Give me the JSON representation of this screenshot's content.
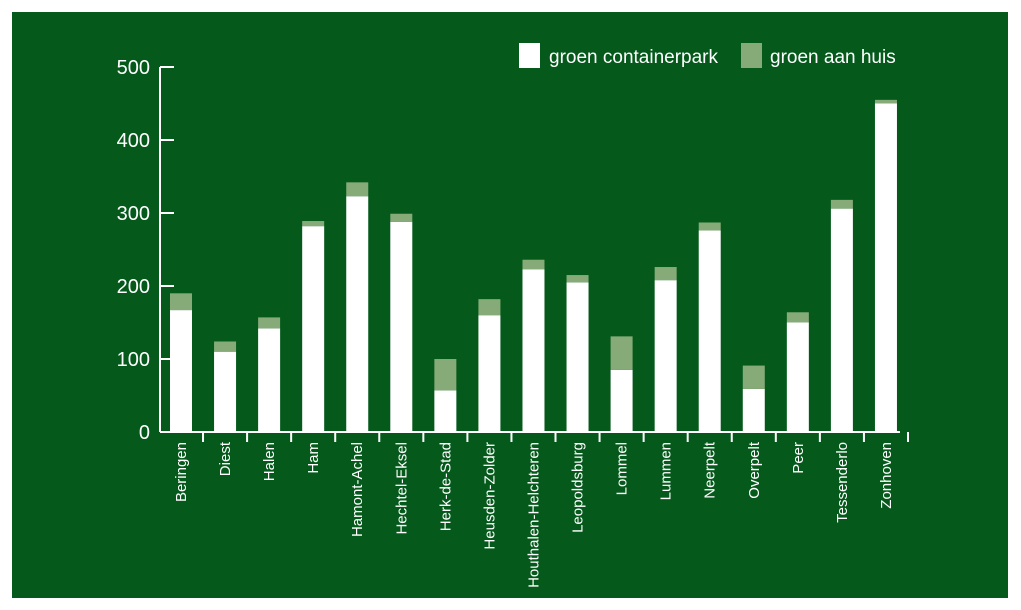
{
  "colors": {
    "background": "#04591b",
    "container_park": "#ffffff",
    "aan_huis": "#86ab79",
    "axis": "#ffffff"
  },
  "chart_data": {
    "type": "bar",
    "stacked": true,
    "title": "",
    "xlabel": "",
    "ylabel": "",
    "ylim": [
      0,
      500
    ],
    "yticks": [
      0,
      100,
      200,
      300,
      400,
      500
    ],
    "grid": false,
    "legend_position": "top-right",
    "categories": [
      "Beringen",
      "Diest",
      "Halen",
      "Ham",
      "Hamont-Achel",
      "Hechtel-Eksel",
      "Herk-de-Stad",
      "Heusden-Zolder",
      "Houthalen-Helchteren",
      "Leopoldsburg",
      "Lommel",
      "Lummen",
      "Neerpelt",
      "Overpelt",
      "Peer",
      "Tessenderlo",
      "Zonhoven"
    ],
    "series": [
      {
        "name": "groen containerpark",
        "color": "#ffffff",
        "values": [
          167,
          110,
          142,
          282,
          323,
          288,
          57,
          160,
          223,
          205,
          85,
          208,
          276,
          59,
          150,
          306,
          450
        ]
      },
      {
        "name": "groen aan huis",
        "color": "#86ab79",
        "values": [
          23,
          14,
          15,
          7,
          19,
          11,
          43,
          22,
          13,
          10,
          46,
          18,
          11,
          32,
          14,
          12,
          5
        ]
      }
    ]
  }
}
